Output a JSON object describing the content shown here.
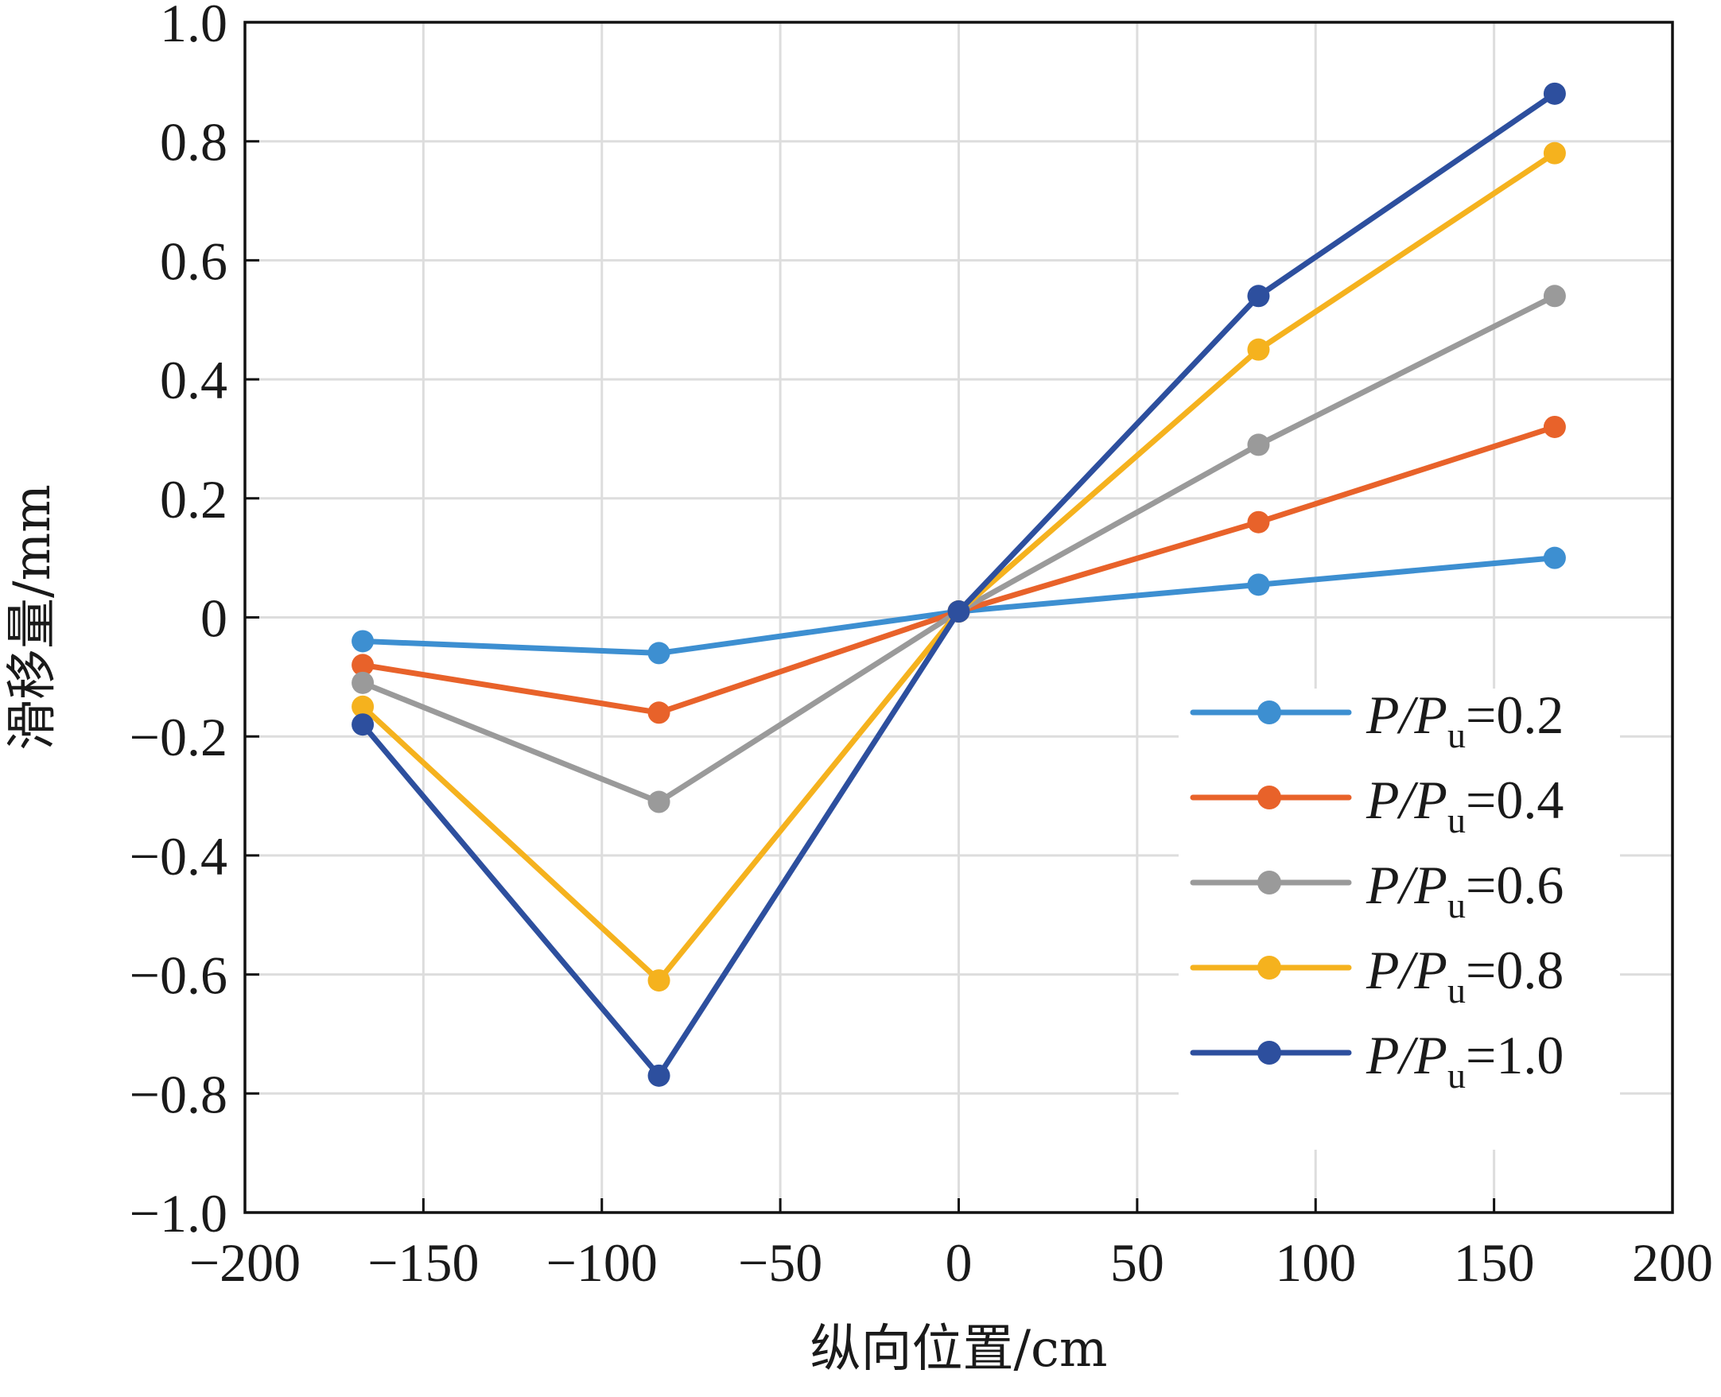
{
  "chart_data": {
    "type": "line",
    "title": "",
    "xlabel": "纵向位置/cm",
    "ylabel": "滑移量/mm",
    "xlim": [
      -200,
      200
    ],
    "ylim": [
      -1.0,
      1.0
    ],
    "xticks": [
      -200,
      -150,
      -100,
      -50,
      0,
      50,
      100,
      150,
      200
    ],
    "xtick_labels": [
      "−200",
      "−150",
      "−100",
      "−50",
      "0",
      "50",
      "100",
      "150",
      "200"
    ],
    "yticks": [
      1.0,
      0.8,
      0.6,
      0.4,
      0.2,
      0,
      -0.2,
      -0.4,
      -0.6,
      -0.8,
      -1.0
    ],
    "ytick_labels": [
      "1.0",
      "0.8",
      "0.6",
      "0.4",
      "0.2",
      "0",
      "−0.2",
      "−0.4",
      "−0.6",
      "−0.8",
      "−1.0"
    ],
    "grid": true,
    "legend_position": "lower-right",
    "x": [
      -167,
      -84,
      0,
      84,
      167
    ],
    "series": [
      {
        "name": "P/Pu=0.2",
        "label_main": "P/P",
        "label_sub": "u",
        "label_tail": "=0.2",
        "color": "#3d8fd1",
        "values": [
          -0.04,
          -0.06,
          0.01,
          0.055,
          0.1
        ]
      },
      {
        "name": "P/Pu=0.4",
        "label_main": "P/P",
        "label_sub": "u",
        "label_tail": "=0.4",
        "color": "#e8622a",
        "values": [
          -0.08,
          -0.16,
          0.01,
          0.16,
          0.32
        ]
      },
      {
        "name": "P/Pu=0.6",
        "label_main": "P/P",
        "label_sub": "u",
        "label_tail": "=0.6",
        "color": "#9a9a9a",
        "values": [
          -0.11,
          -0.31,
          0.01,
          0.29,
          0.54
        ]
      },
      {
        "name": "P/Pu=0.8",
        "label_main": "P/P",
        "label_sub": "u",
        "label_tail": "=0.8",
        "color": "#f5b21e",
        "values": [
          -0.15,
          -0.61,
          0.01,
          0.45,
          0.78
        ]
      },
      {
        "name": "P/Pu=1.0",
        "label_main": "P/P",
        "label_sub": "u",
        "label_tail": "=1.0",
        "color": "#2d4f9e",
        "values": [
          -0.18,
          -0.77,
          0.01,
          0.54,
          0.88
        ]
      }
    ]
  }
}
